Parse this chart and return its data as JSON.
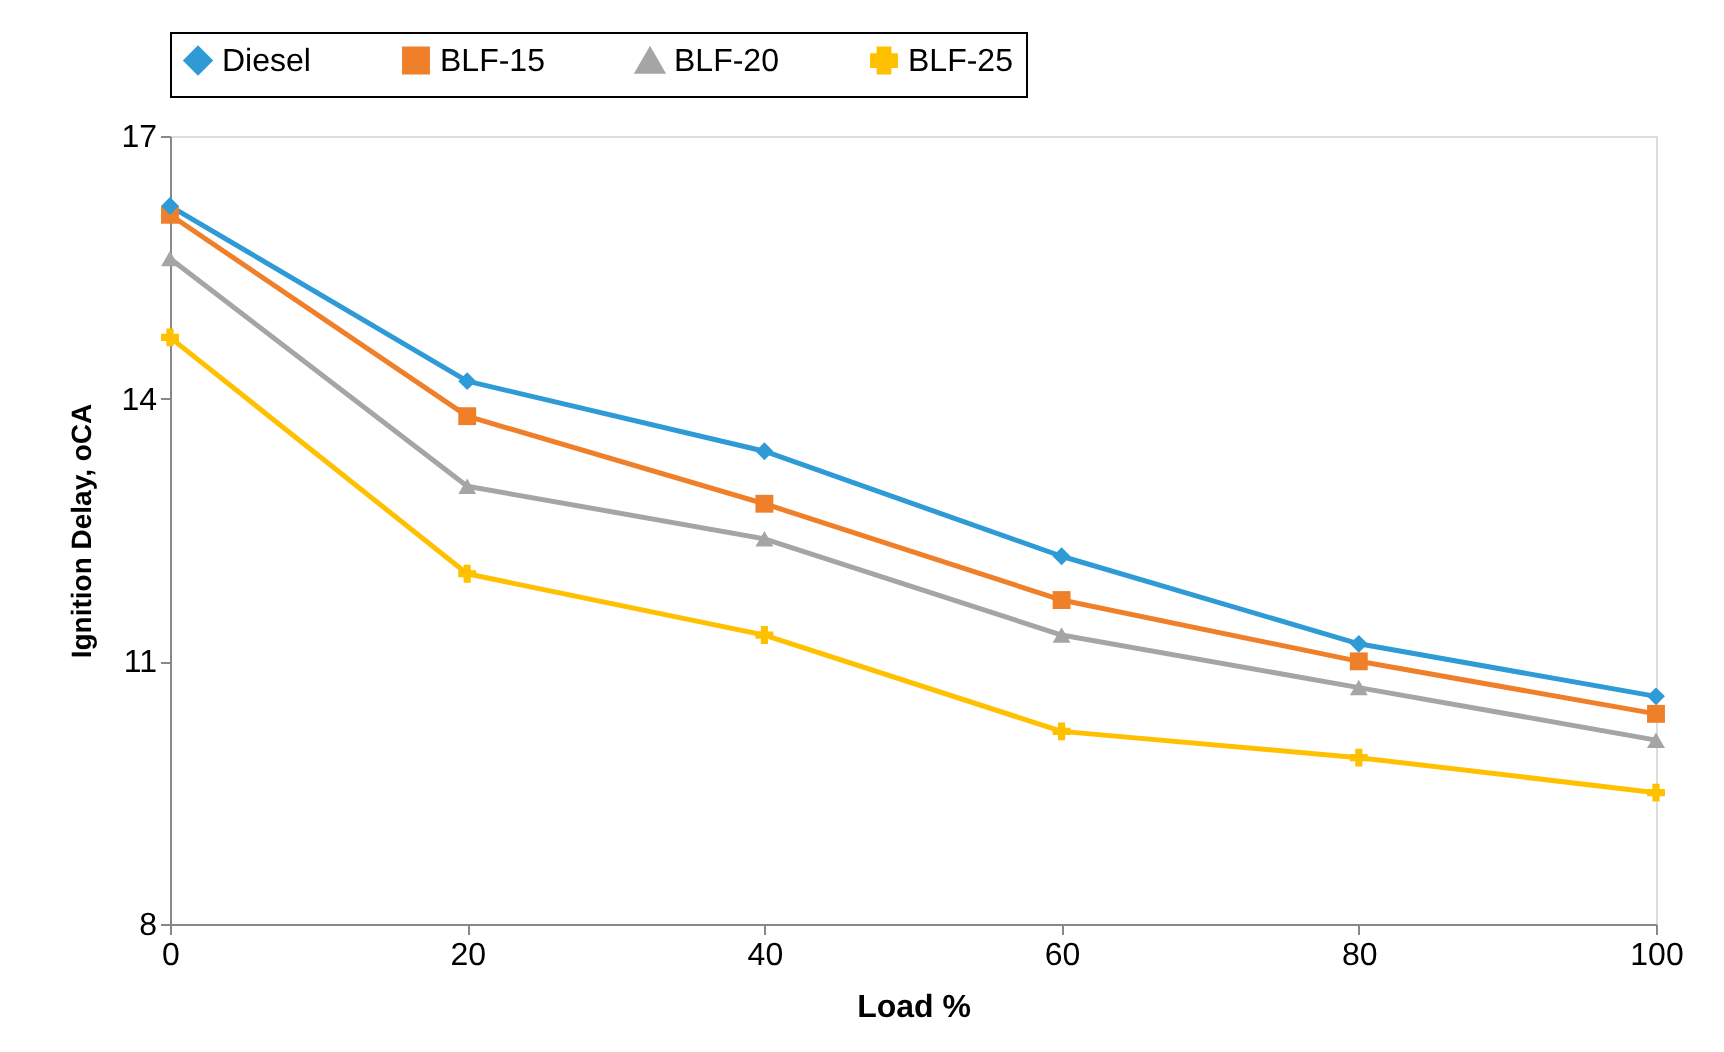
{
  "chart_data": {
    "type": "line",
    "xlabel": "Load %",
    "ylabel": "Ignition Delay, oCA",
    "x": [
      0,
      20,
      40,
      60,
      80,
      100
    ],
    "series": [
      {
        "name": "Diesel",
        "color": "#2e9bd6",
        "marker": "diamond",
        "values": [
          16.2,
          14.2,
          13.4,
          12.2,
          11.2,
          10.6
        ]
      },
      {
        "name": "BLF-15",
        "color": "#f07f2a",
        "marker": "square",
        "values": [
          16.1,
          13.8,
          12.8,
          11.7,
          11.0,
          10.4
        ]
      },
      {
        "name": "BLF-20",
        "color": "#a5a5a5",
        "marker": "triangle",
        "values": [
          15.6,
          13.0,
          12.4,
          11.3,
          10.7,
          10.1
        ]
      },
      {
        "name": "BLF-25",
        "color": "#ffc000",
        "marker": "cross",
        "values": [
          14.7,
          12.0,
          11.3,
          10.2,
          9.9,
          9.5
        ]
      }
    ],
    "xlim": [
      0,
      100
    ],
    "xticks": [
      0,
      20,
      40,
      60,
      80,
      100
    ],
    "ylim": [
      8,
      17
    ],
    "yticks": [
      8,
      11,
      14,
      17
    ],
    "grid": false,
    "legend": "top",
    "line_style": "solid"
  }
}
